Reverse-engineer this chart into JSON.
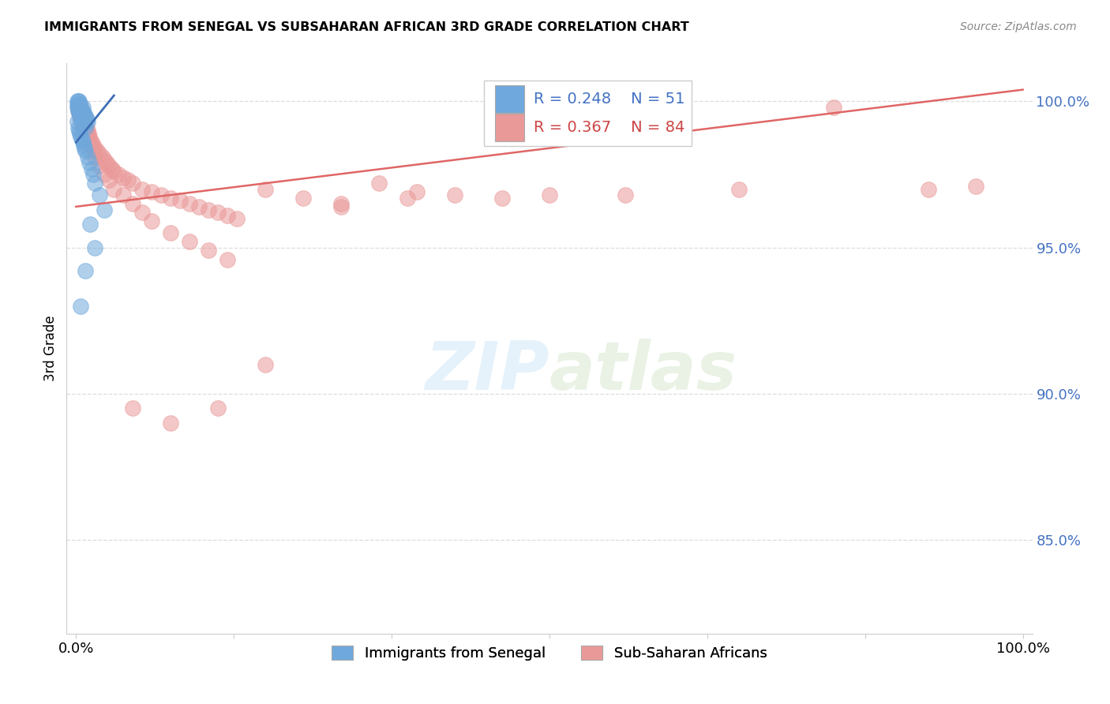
{
  "title": "IMMIGRANTS FROM SENEGAL VS SUBSAHARAN AFRICAN 3RD GRADE CORRELATION CHART",
  "source": "Source: ZipAtlas.com",
  "ylabel": "3rd Grade",
  "blue_R": 0.248,
  "blue_N": 51,
  "pink_R": 0.367,
  "pink_N": 84,
  "blue_color": "#6fa8dc",
  "pink_color": "#ea9999",
  "blue_line_color": "#3d6eb5",
  "pink_line_color": "#e06666",
  "legend_blue_label": "Immigrants from Senegal",
  "legend_pink_label": "Sub-Saharan Africans",
  "xlim": [
    -0.01,
    1.01
  ],
  "ylim": [
    0.818,
    1.013
  ],
  "ytick_vals": [
    0.85,
    0.9,
    0.95,
    1.0
  ],
  "ytick_labels": [
    "85.0%",
    "90.0%",
    "95.0%",
    "100.0%"
  ],
  "xtick_vals": [
    0.0,
    0.1667,
    0.3333,
    0.5,
    0.6667,
    0.8333,
    1.0
  ],
  "xtick_labels": [
    "0.0%",
    "",
    "",
    "",
    "",
    "",
    "100.0%"
  ],
  "blue_points_x": [
    0.001,
    0.001,
    0.001,
    0.002,
    0.002,
    0.002,
    0.002,
    0.003,
    0.003,
    0.003,
    0.003,
    0.004,
    0.004,
    0.004,
    0.005,
    0.005,
    0.005,
    0.006,
    0.006,
    0.007,
    0.007,
    0.007,
    0.008,
    0.008,
    0.009,
    0.009,
    0.01,
    0.01,
    0.011,
    0.012,
    0.001,
    0.002,
    0.003,
    0.004,
    0.005,
    0.006,
    0.007,
    0.008,
    0.009,
    0.01,
    0.012,
    0.014,
    0.016,
    0.018,
    0.02,
    0.025,
    0.03,
    0.015,
    0.02,
    0.01,
    0.005
  ],
  "blue_points_y": [
    1.0,
    0.999,
    0.998,
    1.0,
    0.999,
    0.998,
    0.997,
    1.0,
    0.999,
    0.997,
    0.996,
    0.999,
    0.997,
    0.995,
    0.998,
    0.996,
    0.994,
    0.997,
    0.995,
    0.998,
    0.996,
    0.994,
    0.996,
    0.993,
    0.995,
    0.992,
    0.995,
    0.991,
    0.994,
    0.993,
    0.993,
    0.991,
    0.99,
    0.989,
    0.988,
    0.987,
    0.986,
    0.985,
    0.984,
    0.983,
    0.981,
    0.979,
    0.977,
    0.975,
    0.972,
    0.968,
    0.963,
    0.958,
    0.95,
    0.942,
    0.93
  ],
  "pink_points_x": [
    0.002,
    0.003,
    0.004,
    0.005,
    0.006,
    0.007,
    0.008,
    0.009,
    0.01,
    0.011,
    0.012,
    0.013,
    0.014,
    0.015,
    0.016,
    0.018,
    0.02,
    0.022,
    0.025,
    0.028,
    0.03,
    0.032,
    0.035,
    0.038,
    0.04,
    0.045,
    0.05,
    0.055,
    0.06,
    0.07,
    0.08,
    0.09,
    0.1,
    0.11,
    0.12,
    0.13,
    0.14,
    0.15,
    0.16,
    0.17,
    0.002,
    0.003,
    0.004,
    0.005,
    0.006,
    0.007,
    0.008,
    0.009,
    0.01,
    0.012,
    0.015,
    0.018,
    0.02,
    0.025,
    0.03,
    0.035,
    0.04,
    0.05,
    0.06,
    0.07,
    0.08,
    0.1,
    0.12,
    0.14,
    0.16,
    0.2,
    0.24,
    0.28,
    0.32,
    0.36,
    0.4,
    0.45,
    0.5,
    0.58,
    0.7,
    0.8,
    0.9,
    0.95,
    0.35,
    0.28,
    0.2,
    0.15,
    0.1,
    0.06
  ],
  "pink_points_y": [
    0.998,
    0.999,
    0.997,
    0.998,
    0.996,
    0.995,
    0.994,
    0.993,
    0.992,
    0.991,
    0.99,
    0.989,
    0.988,
    0.987,
    0.986,
    0.985,
    0.984,
    0.983,
    0.982,
    0.981,
    0.98,
    0.979,
    0.978,
    0.977,
    0.976,
    0.975,
    0.974,
    0.973,
    0.972,
    0.97,
    0.969,
    0.968,
    0.967,
    0.966,
    0.965,
    0.964,
    0.963,
    0.962,
    0.961,
    0.96,
    0.997,
    0.996,
    0.995,
    0.994,
    0.993,
    0.992,
    0.991,
    0.99,
    0.989,
    0.987,
    0.985,
    0.983,
    0.981,
    0.978,
    0.975,
    0.973,
    0.97,
    0.968,
    0.965,
    0.962,
    0.959,
    0.955,
    0.952,
    0.949,
    0.946,
    0.97,
    0.967,
    0.964,
    0.972,
    0.969,
    0.968,
    0.967,
    0.968,
    0.968,
    0.97,
    0.998,
    0.97,
    0.971,
    0.967,
    0.965,
    0.91,
    0.895,
    0.89,
    0.895
  ],
  "blue_trend_x": [
    0.0,
    0.04
  ],
  "blue_trend_y": [
    0.986,
    1.002
  ],
  "pink_trend_x": [
    0.0,
    1.0
  ],
  "pink_trend_y": [
    0.964,
    1.004
  ]
}
